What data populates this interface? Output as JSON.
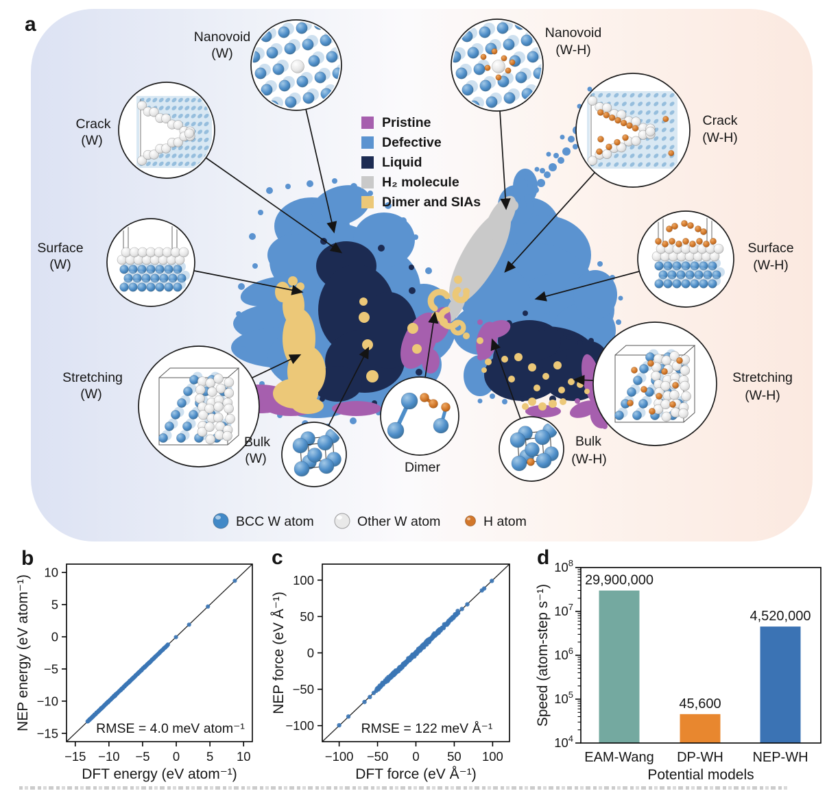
{
  "figure": {
    "panels": {
      "a": "a",
      "b": "b",
      "c": "c",
      "d": "d"
    }
  },
  "panel_a": {
    "callout_labels": {
      "nanovoid_w": [
        "Nanovoid",
        "(W)"
      ],
      "crack_w": [
        "Crack",
        "(W)"
      ],
      "surface_w": [
        "Surface",
        "(W)"
      ],
      "stretching_w": [
        "Stretching",
        "(W)"
      ],
      "bulk_w": [
        "Bulk",
        "(W)"
      ],
      "dimer": [
        "Dimer"
      ],
      "bulk_wh": [
        "Bulk",
        "(W-H)"
      ],
      "nanovoid_wh": [
        "Nanovoid",
        "(W-H)"
      ],
      "crack_wh": [
        "Crack",
        "(W-H)"
      ],
      "surface_wh": [
        "Surface",
        "(W-H)"
      ],
      "stretching_wh": [
        "Stretching",
        "(W-H)"
      ]
    },
    "legend": {
      "items": [
        {
          "label": "Pristine",
          "color": "#a65fae"
        },
        {
          "label": "Defective",
          "color": "#5b93d0"
        },
        {
          "label": "Liquid",
          "color": "#1c2b52"
        },
        {
          "label": "H₂ molecule",
          "color": "#c9c9c9"
        },
        {
          "label": "Dimer and SIAs",
          "color": "#ecc878"
        }
      ]
    },
    "atom_legend": [
      {
        "label": "BCC W atom",
        "color": "#4289c7"
      },
      {
        "label": "Other W atom",
        "color": "#e9e9e9"
      },
      {
        "label": "H atom",
        "color": "#d2772b"
      }
    ],
    "clusters": [
      {
        "name": "W configurations (left cluster)",
        "categories_present": [
          "Pristine",
          "Defective",
          "Liquid",
          "Dimer and SIAs"
        ]
      },
      {
        "name": "W-H configurations (right cluster)",
        "categories_present": [
          "Pristine",
          "Defective",
          "Liquid",
          "H₂ molecule",
          "Dimer and SIAs"
        ]
      }
    ]
  },
  "chart_data": [
    {
      "panel": "b",
      "type": "scatter",
      "xlabel": "DFT energy (eV atom⁻¹)",
      "ylabel": "NEP energy (eV atom⁻¹)",
      "xlim": [
        -16.3,
        11.3
      ],
      "ylim": [
        -16.3,
        11.3
      ],
      "xticks": [
        -15,
        -10,
        -5,
        0,
        5,
        10
      ],
      "yticks": [
        10,
        5,
        0,
        -5,
        -10,
        -15
      ],
      "annotation": "RMSE = 4.0 meV atom⁻¹",
      "identity_line": true,
      "point_color": "#3c76b5",
      "point_r": 3.1,
      "scatter_sd": 0.05,
      "seed": 11,
      "dense_bands": [
        {
          "from": -13.2,
          "to": -8.6,
          "count": 85
        },
        {
          "from": -9.3,
          "to": -8.9,
          "count": 15
        },
        {
          "from": -8.5,
          "to": -3.0,
          "count": 115
        },
        {
          "from": -2.9,
          "to": -1.2,
          "count": 22
        }
      ],
      "outlier_points": [
        -0.05,
        1.9,
        4.7,
        8.7
      ]
    },
    {
      "panel": "c",
      "type": "scatter",
      "xlabel": "DFT force (eV Å⁻¹)",
      "ylabel": "NEP force (eV Å⁻¹)",
      "xlim": [
        -122,
        122
      ],
      "ylim": [
        -122,
        122
      ],
      "xticks": [
        -100,
        -50,
        0,
        50,
        100
      ],
      "yticks": [
        100,
        50,
        0,
        -50,
        -100
      ],
      "annotation": "RMSE = 122 meV Å⁻¹",
      "identity_line": true,
      "point_color": "#3c76b5",
      "point_r": 3.2,
      "scatter_sd": 2.2,
      "seed": 23,
      "dense_bands": [
        {
          "from": -33,
          "to": 33,
          "count": 240
        },
        {
          "from": -52,
          "to": -33,
          "count": 26
        },
        {
          "from": 33,
          "to": 55,
          "count": 30
        }
      ],
      "outlier_points": [
        -100,
        -88,
        -67,
        -60,
        -55,
        -48,
        45,
        48,
        52,
        55,
        60,
        67,
        86,
        89,
        99
      ]
    },
    {
      "panel": "d",
      "type": "bar",
      "categories": [
        "EAM-Wang",
        "DP-WH",
        "NEP-WH"
      ],
      "values": [
        29900000,
        45600,
        4520000
      ],
      "value_labels": [
        "29,900,000",
        "45,600",
        "4,520,000"
      ],
      "bar_colors": [
        "#74a9a0",
        "#e8872f",
        "#3b73b4"
      ],
      "ylabel": "Speed (atom-step s⁻¹)",
      "xlabel": "Potential models",
      "yscale": "log",
      "ylim": [
        10000,
        100000000
      ],
      "yticks_exp": [
        4,
        5,
        6,
        7,
        8
      ],
      "ytick_labels": [
        "10⁴",
        "10⁵",
        "10⁶",
        "10⁷",
        "10⁸"
      ]
    }
  ]
}
